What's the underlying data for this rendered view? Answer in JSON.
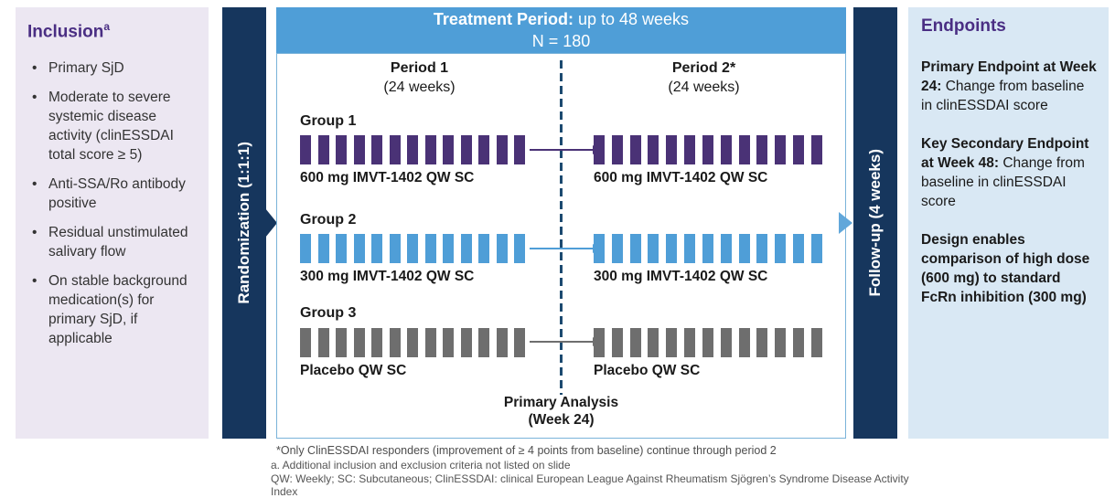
{
  "inclusion_panel": {
    "title": "Inclusion",
    "title_sup": "a",
    "bullets": [
      "Primary SjD",
      "Moderate to severe systemic disease activity (clinESSDAI total score ≥ 5)",
      "Anti-SSA/Ro antibody positive",
      "Residual unstimulated salivary flow",
      "On stable background medication(s) for primary SjD, if applicable"
    ]
  },
  "randomization_bar": {
    "label": "Randomization (1:1:1)"
  },
  "followup_bar": {
    "label": "Follow-up (4 weeks)"
  },
  "treatment_panel": {
    "header": {
      "title_bold": "Treatment Period:",
      "title_rest": " up to 48 weeks",
      "subtitle": "N = 180"
    },
    "period1": {
      "title": "Period 1",
      "subtitle": "(24 weeks)"
    },
    "period2": {
      "title": "Period 2*",
      "subtitle": "(24 weeks)"
    },
    "groups": [
      {
        "name": "Group 1",
        "period1_label": "600 mg IMVT-1402 QW SC",
        "period2_label": "600 mg IMVT-1402 QW SC",
        "color": "#4a3276",
        "bar_count": 13
      },
      {
        "name": "Group 2",
        "period1_label": "300 mg IMVT-1402 QW SC",
        "period2_label": "300 mg IMVT-1402 QW SC",
        "color": "#4f9ed7",
        "bar_count": 13
      },
      {
        "name": "Group 3",
        "period1_label": "Placebo QW SC",
        "period2_label": "Placebo QW SC",
        "color": "#6e6e6e",
        "bar_count": 13
      }
    ],
    "primary_analysis": {
      "line1": "Primary Analysis",
      "line2": "(Week 24)"
    }
  },
  "endpoints_panel": {
    "title": "Endpoints",
    "items": [
      {
        "bold": "Primary Endpoint at Week 24:",
        "rest": " Change from baseline in clinESSDAI score"
      },
      {
        "bold": "Key Secondary Endpoint at Week 48:",
        "rest": " Change from baseline in clinESSDAI score"
      },
      {
        "bold": "Design enables comparison of high dose (600 mg) to standard FcRn inhibition (300 mg)",
        "rest": ""
      }
    ]
  },
  "footnotes": [
    "*Only ClinESSDAI responders (improvement of ≥ 4 points from baseline) continue through period 2",
    "a. Additional inclusion and exclusion criteria not listed on slide",
    "QW: Weekly; SC: Subcutaneous; ClinESSDAI: clinical European League Against Rheumatism Sjögren’s Syndrome Disease Activity Index"
  ],
  "colors": {
    "navy": "#16365d",
    "header_blue": "#4f9ed7",
    "title_purple": "#4a2e83",
    "bar_purple": "#4a3276",
    "bar_blue": "#4f9ed7",
    "bar_gray": "#6e6e6e",
    "inclusion_bg": "#ece7f2",
    "endpoints_bg": "#d9e8f4",
    "divider_dash": "#1c4a70",
    "followup_chevron": "#61a7da"
  }
}
